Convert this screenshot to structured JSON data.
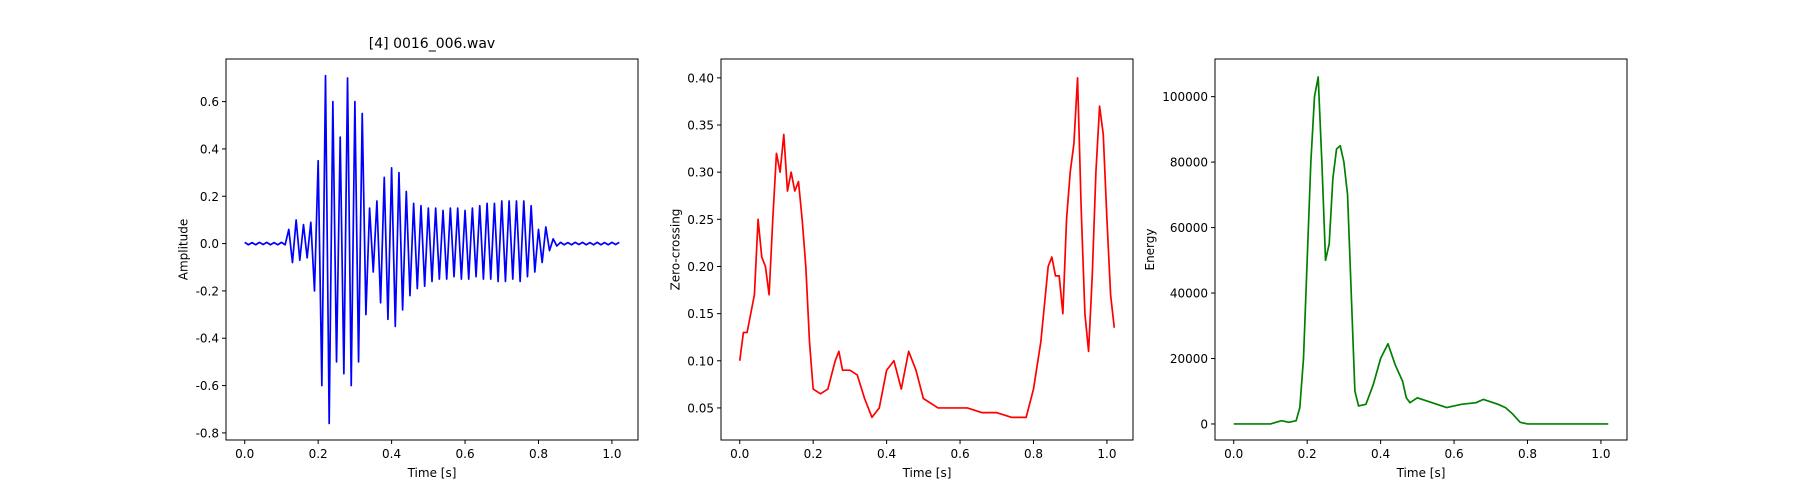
{
  "chart_data": [
    {
      "type": "line",
      "title": "[4] 0016_006.wav",
      "xlabel": "Time [s]",
      "ylabel": "Amplitude",
      "color": "#0000ff",
      "xlim": [
        -0.051,
        1.071
      ],
      "ylim": [
        -0.83,
        0.78
      ],
      "xticks": [
        {
          "value": 0,
          "label": "0.0"
        },
        {
          "value": 0.2,
          "label": "0.2"
        },
        {
          "value": 0.4,
          "label": "0.4"
        },
        {
          "value": 0.6,
          "label": "0.6"
        },
        {
          "value": 0.8,
          "label": "0.8"
        },
        {
          "value": 1.0,
          "label": "1.0"
        }
      ],
      "yticks": [
        -0.8,
        -0.6,
        -0.4,
        -0.2,
        {
          "value": 0,
          "label": "0.0"
        },
        0.2,
        0.4,
        0.6
      ],
      "x": [
        0,
        0.01,
        0.02,
        0.03,
        0.04,
        0.05,
        0.06,
        0.07,
        0.08,
        0.09,
        0.1,
        0.11,
        0.12,
        0.13,
        0.14,
        0.15,
        0.16,
        0.17,
        0.18,
        0.19,
        0.2,
        0.21,
        0.22,
        0.23,
        0.24,
        0.25,
        0.26,
        0.27,
        0.28,
        0.29,
        0.3,
        0.31,
        0.32,
        0.33,
        0.34,
        0.35,
        0.36,
        0.37,
        0.38,
        0.39,
        0.4,
        0.41,
        0.42,
        0.43,
        0.44,
        0.45,
        0.46,
        0.47,
        0.48,
        0.49,
        0.5,
        0.51,
        0.52,
        0.53,
        0.54,
        0.55,
        0.56,
        0.57,
        0.58,
        0.59,
        0.6,
        0.61,
        0.62,
        0.63,
        0.64,
        0.65,
        0.66,
        0.67,
        0.68,
        0.69,
        0.7,
        0.71,
        0.72,
        0.73,
        0.74,
        0.75,
        0.76,
        0.77,
        0.78,
        0.79,
        0.8,
        0.81,
        0.82,
        0.83,
        0.84,
        0.85,
        0.86,
        0.87,
        0.88,
        0.89,
        0.9,
        0.91,
        0.92,
        0.93,
        0.94,
        0.95,
        0.96,
        0.97,
        0.98,
        0.99,
        1.0,
        1.01,
        1.02
      ],
      "values": [
        0.005,
        -0.005,
        0.004,
        -0.005,
        0.005,
        -0.004,
        0.005,
        -0.005,
        0.004,
        -0.005,
        0.005,
        -0.005,
        0.06,
        -0.08,
        0.1,
        -0.07,
        0.08,
        -0.06,
        0.09,
        -0.2,
        0.35,
        -0.6,
        0.71,
        -0.76,
        0.6,
        -0.5,
        0.45,
        -0.55,
        0.7,
        -0.6,
        0.6,
        -0.5,
        0.55,
        -0.3,
        0.15,
        -0.12,
        0.18,
        -0.25,
        0.28,
        -0.32,
        0.32,
        -0.35,
        0.3,
        -0.28,
        0.22,
        -0.22,
        0.17,
        -0.19,
        0.16,
        -0.18,
        0.15,
        -0.16,
        0.15,
        -0.15,
        0.14,
        -0.15,
        0.15,
        -0.14,
        0.15,
        -0.15,
        0.14,
        -0.15,
        0.15,
        -0.14,
        0.16,
        -0.15,
        0.17,
        -0.15,
        0.17,
        -0.16,
        0.18,
        -0.16,
        0.18,
        -0.15,
        0.18,
        -0.16,
        0.18,
        -0.14,
        0.16,
        -0.12,
        0.06,
        -0.08,
        0.07,
        -0.03,
        0.02,
        -0.01,
        0.005,
        -0.005,
        0.004,
        -0.005,
        0.005,
        -0.004,
        0.005,
        -0.005,
        0.004,
        -0.005,
        0.005,
        -0.005,
        0.004,
        -0.005,
        0.005,
        -0.004,
        0.005
      ]
    },
    {
      "type": "line",
      "xlabel": "Time [s]",
      "ylabel": "Zero-crossing",
      "color": "#ff0000",
      "xlim": [
        -0.051,
        1.071
      ],
      "ylim": [
        0.016,
        0.42
      ],
      "xticks": [
        {
          "value": 0,
          "label": "0.0"
        },
        {
          "value": 0.2,
          "label": "0.2"
        },
        {
          "value": 0.4,
          "label": "0.4"
        },
        {
          "value": 0.6,
          "label": "0.6"
        },
        {
          "value": 0.8,
          "label": "0.8"
        },
        {
          "value": 1.0,
          "label": "1.0"
        }
      ],
      "yticks": [
        0.05,
        {
          "value": 0.1,
          "label": "0.10"
        },
        0.15,
        {
          "value": 0.2,
          "label": "0.20"
        },
        0.25,
        {
          "value": 0.3,
          "label": "0.30"
        },
        0.35,
        {
          "value": 0.4,
          "label": "0.40"
        }
      ],
      "x": [
        0,
        0.01,
        0.02,
        0.03,
        0.04,
        0.05,
        0.06,
        0.07,
        0.08,
        0.09,
        0.1,
        0.11,
        0.12,
        0.13,
        0.14,
        0.15,
        0.16,
        0.17,
        0.18,
        0.19,
        0.2,
        0.22,
        0.24,
        0.26,
        0.27,
        0.28,
        0.3,
        0.32,
        0.34,
        0.36,
        0.38,
        0.4,
        0.42,
        0.44,
        0.46,
        0.48,
        0.5,
        0.54,
        0.58,
        0.62,
        0.66,
        0.7,
        0.74,
        0.78,
        0.8,
        0.82,
        0.84,
        0.85,
        0.86,
        0.87,
        0.88,
        0.89,
        0.9,
        0.91,
        0.92,
        0.93,
        0.94,
        0.95,
        0.96,
        0.97,
        0.98,
        0.99,
        1.0,
        1.01,
        1.02
      ],
      "values": [
        0.1,
        0.13,
        0.13,
        0.15,
        0.17,
        0.25,
        0.21,
        0.2,
        0.17,
        0.25,
        0.32,
        0.3,
        0.34,
        0.28,
        0.3,
        0.28,
        0.29,
        0.25,
        0.2,
        0.12,
        0.07,
        0.065,
        0.07,
        0.1,
        0.11,
        0.09,
        0.09,
        0.085,
        0.06,
        0.04,
        0.05,
        0.09,
        0.1,
        0.07,
        0.11,
        0.09,
        0.06,
        0.05,
        0.05,
        0.05,
        0.045,
        0.045,
        0.04,
        0.04,
        0.07,
        0.12,
        0.2,
        0.21,
        0.19,
        0.19,
        0.15,
        0.25,
        0.3,
        0.33,
        0.4,
        0.26,
        0.15,
        0.11,
        0.19,
        0.3,
        0.37,
        0.34,
        0.25,
        0.17,
        0.135
      ]
    },
    {
      "type": "line",
      "xlabel": "Time [s]",
      "ylabel": "Energy",
      "color": "#008000",
      "xlim": [
        -0.051,
        1.071
      ],
      "ylim": [
        -4900,
        111500
      ],
      "xticks": [
        {
          "value": 0,
          "label": "0.0"
        },
        {
          "value": 0.2,
          "label": "0.2"
        },
        {
          "value": 0.4,
          "label": "0.4"
        },
        {
          "value": 0.6,
          "label": "0.6"
        },
        {
          "value": 0.8,
          "label": "0.8"
        },
        {
          "value": 1.0,
          "label": "1.0"
        }
      ],
      "yticks": [
        0,
        20000,
        40000,
        60000,
        80000,
        100000
      ],
      "x": [
        0,
        0.1,
        0.13,
        0.15,
        0.17,
        0.18,
        0.19,
        0.2,
        0.21,
        0.22,
        0.23,
        0.24,
        0.25,
        0.26,
        0.27,
        0.28,
        0.29,
        0.3,
        0.31,
        0.32,
        0.33,
        0.34,
        0.36,
        0.38,
        0.4,
        0.42,
        0.44,
        0.46,
        0.47,
        0.48,
        0.5,
        0.54,
        0.58,
        0.62,
        0.66,
        0.68,
        0.72,
        0.74,
        0.76,
        0.78,
        0.8,
        1.02
      ],
      "values": [
        0,
        0,
        1000,
        500,
        1000,
        5000,
        20000,
        50000,
        80000,
        100000,
        106000,
        80000,
        50000,
        55000,
        75000,
        84000,
        85000,
        80000,
        70000,
        40000,
        10000,
        5500,
        6000,
        12000,
        20000,
        24500,
        18000,
        13000,
        8000,
        6500,
        8000,
        6500,
        5000,
        6000,
        6500,
        7500,
        6000,
        5000,
        3000,
        500,
        0,
        0
      ]
    }
  ]
}
